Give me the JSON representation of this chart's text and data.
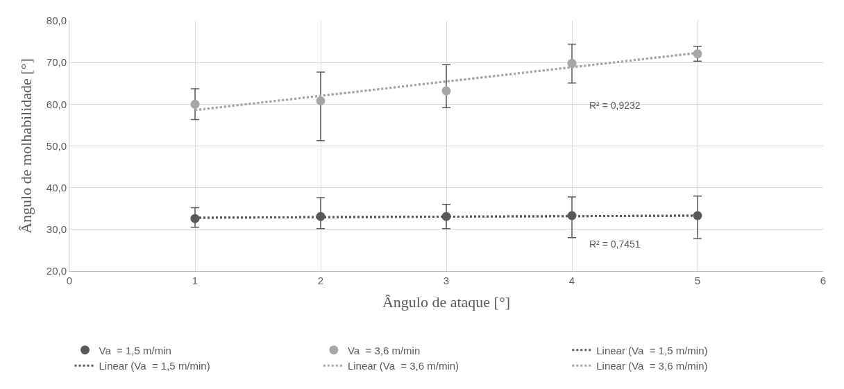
{
  "chart_data": {
    "type": "scatter",
    "xlabel": "Ângulo de ataque [°]",
    "ylabel": "Ângulo de molhabilidade [°]",
    "series": [
      {
        "name": "Va  = 1,5 m/min",
        "color": "#595959",
        "marker": "circle",
        "x": [
          1,
          2,
          3,
          4,
          5
        ],
        "values": [
          32.6,
          33.1,
          33.1,
          33.3,
          33.3
        ],
        "errors": [
          [
            30.5,
            35.2
          ],
          [
            30.2,
            37.6
          ],
          [
            30.2,
            36.0
          ],
          [
            28.0,
            37.8
          ],
          [
            27.8,
            38.0
          ]
        ]
      },
      {
        "name": "Va  = 3,6 m/min",
        "color": "#a6a6a6",
        "marker": "circle",
        "x": [
          1,
          2,
          3,
          4,
          5
        ],
        "values": [
          60.0,
          60.8,
          63.2,
          69.8,
          72.1
        ],
        "errors": [
          [
            56.3,
            63.7
          ],
          [
            51.3,
            67.7
          ],
          [
            59.2,
            69.5
          ],
          [
            65.1,
            74.4
          ],
          [
            70.3,
            73.9
          ]
        ]
      },
      {
        "name": "Linear (Va  = 1,5 m/min)",
        "type": "line",
        "color": "#595959",
        "line_style": "dotted",
        "x": [
          1,
          5
        ],
        "values": [
          32.8,
          33.3
        ]
      },
      {
        "name": "Linear (Va  = 1,5 m/min)",
        "type": "line",
        "color": "#595959",
        "line_style": "dotted",
        "x": [
          1,
          5
        ],
        "values": [
          32.8,
          33.3
        ]
      },
      {
        "name": "Linear (Va  = 3,6 m/min)",
        "type": "line",
        "color": "#a6a6a6",
        "line_style": "dotted",
        "x": [
          1,
          5
        ],
        "values": [
          58.6,
          72.3
        ]
      },
      {
        "name": "Linear (Va  = 3,6 m/min)",
        "type": "line",
        "color": "#a6a6a6",
        "line_style": "dotted",
        "x": [
          1,
          5
        ],
        "values": [
          58.6,
          72.3
        ]
      }
    ],
    "annotations": [
      "R² = 0,9232",
      "R² = 0,7451"
    ],
    "xlim": [
      0,
      6
    ],
    "xticks": [
      0,
      1,
      2,
      3,
      4,
      5,
      6
    ],
    "ylim": [
      20,
      80
    ],
    "yticks": [
      {
        "value": 20,
        "label": "20,0"
      },
      {
        "value": 30,
        "label": "30,0"
      },
      {
        "value": 40,
        "label": "40,0"
      },
      {
        "value": 50,
        "label": "50,0"
      },
      {
        "value": 60,
        "label": "60,0"
      },
      {
        "value": 70,
        "label": "70,0"
      },
      {
        "value": 80,
        "label": "80,0"
      }
    ],
    "grid": true,
    "legend": "bottom"
  }
}
